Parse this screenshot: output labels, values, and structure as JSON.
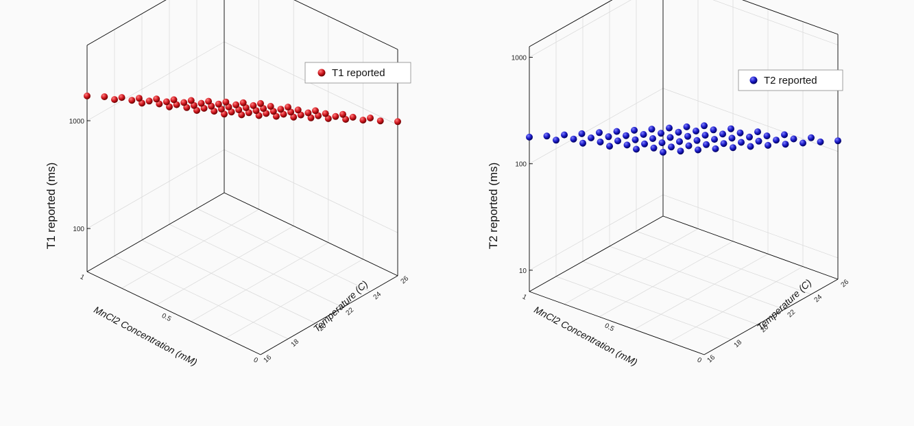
{
  "chart_data": [
    {
      "type": "scatter",
      "series": [
        {
          "name": "T1 reported",
          "color": "#c0141c"
        }
      ],
      "zlabel": "T1 reported (ms)",
      "xlabel": "MnCl2 Concentration (mM)",
      "ylabel": "Temperature (C)",
      "z_scale": "log",
      "z_ticks": [
        "100",
        "1000"
      ],
      "x_ticks": [
        "0",
        "0.5",
        "1"
      ],
      "y_ticks": [
        "16",
        "18",
        "20",
        "22",
        "24",
        "26"
      ],
      "conc": [
        0,
        0.1,
        0.2,
        0.3,
        0.4,
        0.5,
        0.6,
        0.7,
        0.8,
        0.9,
        1.0
      ],
      "temp": [
        16,
        18,
        20,
        22,
        24,
        26
      ],
      "grid": true,
      "legend": "top-right"
    },
    {
      "type": "scatter",
      "series": [
        {
          "name": "T2 reported",
          "color": "#1a1ab8"
        }
      ],
      "zlabel": "T2 reported (ms)",
      "xlabel": "MnCl2 Concentration (mM)",
      "ylabel": "Temperature (C)",
      "z_scale": "log",
      "z_ticks": [
        "10",
        "100",
        "1000"
      ],
      "x_ticks": [
        "0",
        "0.5",
        "1"
      ],
      "y_ticks": [
        "16",
        "18",
        "20",
        "22",
        "24",
        "26"
      ],
      "conc": [
        0,
        0.1,
        0.2,
        0.3,
        0.4,
        0.5,
        0.6,
        0.7,
        0.8,
        0.9,
        1.0
      ],
      "temp": [
        16,
        18,
        20,
        22,
        24,
        26
      ],
      "grid": true,
      "legend": "top-right"
    }
  ]
}
